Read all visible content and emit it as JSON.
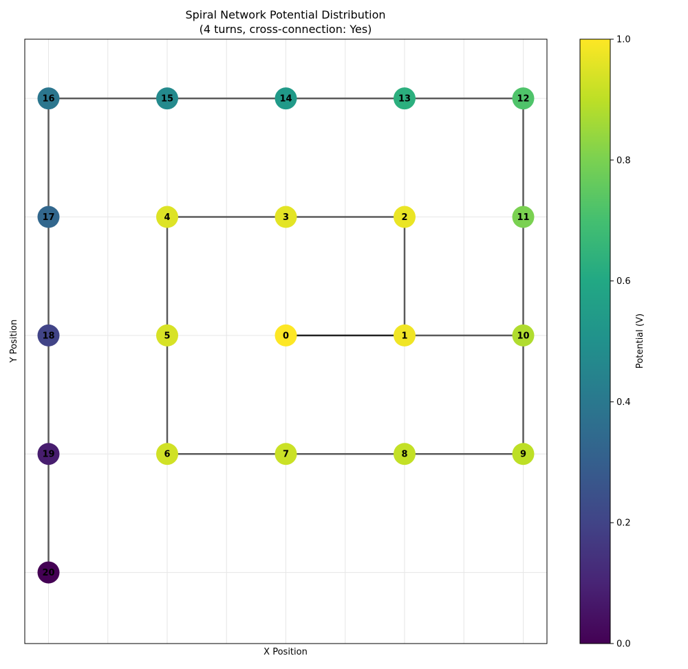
{
  "chart_data": {
    "type": "network",
    "title": "Spiral Network Potential Distribution",
    "subtitle": "(4 turns, cross-connection: Yes)",
    "xlabel": "X Position",
    "ylabel": "Y Position",
    "xlim": [
      -2.2,
      2.2
    ],
    "ylim": [
      -2.6,
      2.5
    ],
    "grid": true,
    "colormap": "viridis",
    "colorbar": {
      "label": "Potential (V)",
      "range": [
        0,
        1
      ],
      "ticks": [
        "0.0",
        "0.2",
        "0.4",
        "0.6",
        "0.8",
        "1.0"
      ]
    },
    "nodes": [
      {
        "id": 0,
        "label": "0",
        "x": 0,
        "y": 0,
        "potential": 1.0
      },
      {
        "id": 1,
        "label": "1",
        "x": 1,
        "y": 0,
        "potential": 0.98
      },
      {
        "id": 2,
        "label": "2",
        "x": 1,
        "y": 1,
        "potential": 0.97
      },
      {
        "id": 3,
        "label": "3",
        "x": 0,
        "y": 1,
        "potential": 0.96
      },
      {
        "id": 4,
        "label": "4",
        "x": -1,
        "y": 1,
        "potential": 0.95
      },
      {
        "id": 5,
        "label": "5",
        "x": -1,
        "y": 0,
        "potential": 0.94
      },
      {
        "id": 6,
        "label": "6",
        "x": -1,
        "y": -1,
        "potential": 0.93
      },
      {
        "id": 7,
        "label": "7",
        "x": 0,
        "y": -1,
        "potential": 0.92
      },
      {
        "id": 8,
        "label": "8",
        "x": 1,
        "y": -1,
        "potential": 0.91
      },
      {
        "id": 9,
        "label": "9",
        "x": 2,
        "y": -1,
        "potential": 0.9
      },
      {
        "id": 10,
        "label": "10",
        "x": 2,
        "y": 0,
        "potential": 0.88
      },
      {
        "id": 11,
        "label": "11",
        "x": 2,
        "y": 1,
        "potential": 0.8
      },
      {
        "id": 12,
        "label": "12",
        "x": 2,
        "y": 2,
        "potential": 0.72
      },
      {
        "id": 13,
        "label": "13",
        "x": 1,
        "y": 2,
        "potential": 0.63
      },
      {
        "id": 14,
        "label": "14",
        "x": 0,
        "y": 2,
        "potential": 0.54
      },
      {
        "id": 15,
        "label": "15",
        "x": -1,
        "y": 2,
        "potential": 0.47
      },
      {
        "id": 16,
        "label": "16",
        "x": -2,
        "y": 2,
        "potential": 0.39
      },
      {
        "id": 17,
        "label": "17",
        "x": -2,
        "y": 1,
        "potential": 0.33
      },
      {
        "id": 18,
        "label": "18",
        "x": -2,
        "y": 0,
        "potential": 0.2
      },
      {
        "id": 19,
        "label": "19",
        "x": -2,
        "y": -1,
        "potential": 0.08
      },
      {
        "id": 20,
        "label": "20",
        "x": -2,
        "y": -2,
        "potential": 0.0
      }
    ],
    "edges": [
      [
        0,
        1
      ],
      [
        1,
        2
      ],
      [
        2,
        3
      ],
      [
        3,
        4
      ],
      [
        4,
        5
      ],
      [
        5,
        6
      ],
      [
        6,
        7
      ],
      [
        7,
        8
      ],
      [
        8,
        9
      ],
      [
        9,
        10
      ],
      [
        10,
        11
      ],
      [
        11,
        12
      ],
      [
        12,
        13
      ],
      [
        13,
        14
      ],
      [
        14,
        15
      ],
      [
        15,
        16
      ],
      [
        16,
        17
      ],
      [
        17,
        18
      ],
      [
        18,
        19
      ],
      [
        19,
        20
      ],
      [
        1,
        10
      ]
    ]
  },
  "colors": {
    "edge": "#5a5a5a",
    "edge_center": "#222222",
    "grid": "#e6e6e6"
  }
}
